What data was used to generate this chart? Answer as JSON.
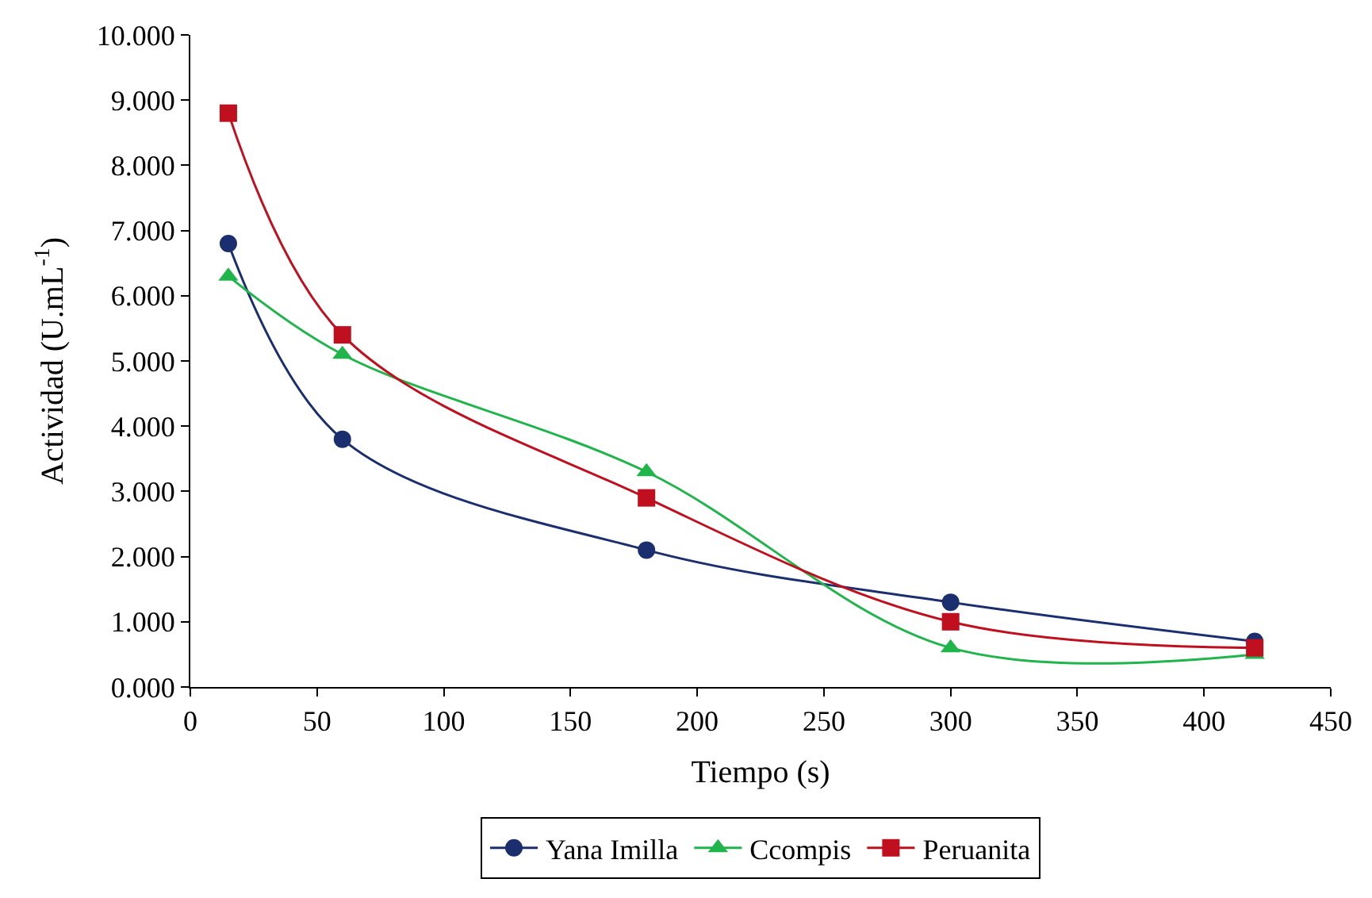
{
  "chart_data": {
    "type": "line",
    "xlabel": "Tiempo (s)",
    "ylabel": "Actividad (U.mL$^{-1}$)",
    "x": [
      15,
      60,
      180,
      300,
      420
    ],
    "series": [
      {
        "name": "Yana Imilla",
        "color": "#1b2f6e",
        "marker": "circle",
        "values": [
          6.8,
          3.8,
          2.1,
          1.3,
          0.7
        ]
      },
      {
        "name": "Ccompis",
        "color": "#1fb54b",
        "marker": "triangle",
        "values": [
          6.3,
          5.1,
          3.3,
          0.6,
          0.5
        ]
      },
      {
        "name": "Peruanita",
        "color": "#c00f1e",
        "marker": "square",
        "values": [
          8.8,
          5.4,
          2.9,
          1.0,
          0.6
        ]
      }
    ],
    "xlim": [
      0,
      450
    ],
    "xticks": [
      0,
      50,
      100,
      150,
      200,
      250,
      300,
      350,
      400,
      450
    ],
    "ylim": [
      0,
      10
    ],
    "yticks": [
      {
        "value": 0,
        "label": "0.000"
      },
      {
        "value": 1,
        "label": "1.000"
      },
      {
        "value": 2,
        "label": "2.000"
      },
      {
        "value": 3,
        "label": "3.000"
      },
      {
        "value": 4,
        "label": "4.000"
      },
      {
        "value": 5,
        "label": "5.000"
      },
      {
        "value": 6,
        "label": "6.000"
      },
      {
        "value": 7,
        "label": "7.000"
      },
      {
        "value": 8,
        "label": "8.000"
      },
      {
        "value": 9,
        "label": "9.000"
      },
      {
        "value": 10,
        "label": "10.000"
      }
    ],
    "legend": "bottom"
  }
}
